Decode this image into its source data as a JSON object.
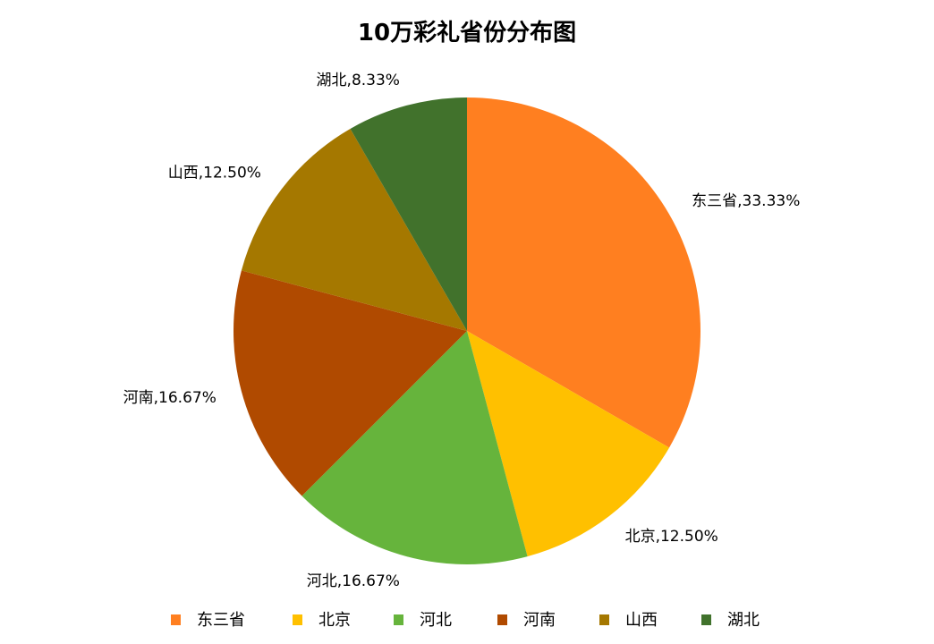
{
  "chart_data": {
    "type": "pie",
    "title": "10万彩礼省份分布图",
    "categories": [
      "东三省",
      "北京",
      "河北",
      "河南",
      "山西",
      "湖北"
    ],
    "values": [
      33.33,
      12.5,
      16.67,
      16.67,
      12.5,
      8.33
    ],
    "labels": [
      "东三省,33.33%",
      "北京,12.50%",
      "河北,16.67%",
      "河南,16.67%",
      "山西,12.50%",
      "湖北,8.33%"
    ],
    "colors": [
      "#ff7f20",
      "#ffc000",
      "#66b43c",
      "#b04a00",
      "#a57800",
      "#41722c"
    ],
    "start_angle": "top, clockwise",
    "legend_position": "bottom"
  }
}
